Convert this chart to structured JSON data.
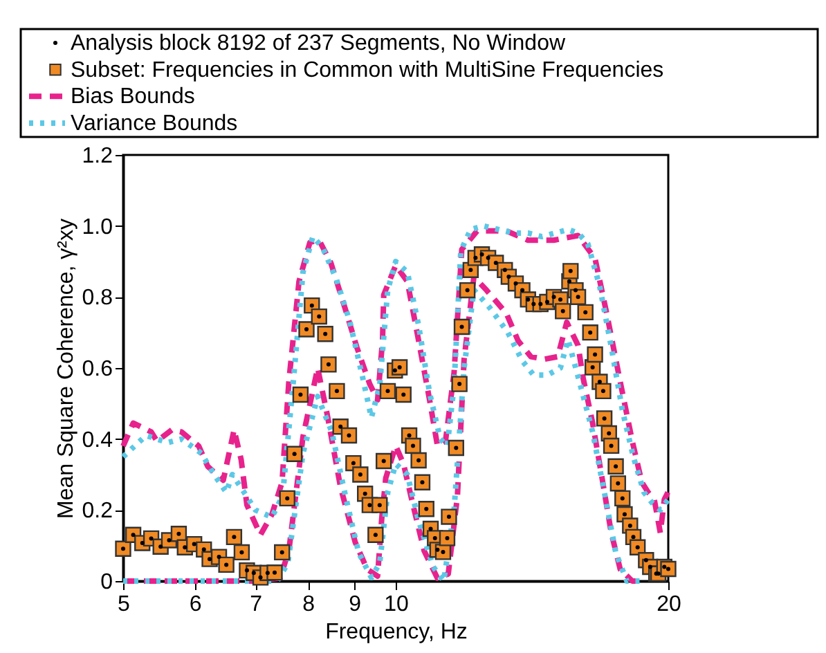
{
  "chart_data": {
    "type": "scatter",
    "xlabel": "Frequency, Hz",
    "ylabel": "Mean Square Coherence, γ²xy",
    "log": "x",
    "xlim": [
      5,
      20
    ],
    "xticks": [
      5,
      6,
      7,
      8,
      9,
      10,
      20
    ],
    "ylim": [
      0,
      1.2
    ],
    "yticks": [
      0,
      0.2,
      0.4,
      0.6,
      0.8,
      {
        "value": 1,
        "label": "1.0"
      },
      1.2
    ],
    "grid": false,
    "legend": "top",
    "series": [
      {
        "name": "Analysis block 8192 of 237 Segments, No Window",
        "marker": "circle",
        "color": "#000000",
        "x": [
          5.0,
          5.13,
          5.25,
          5.37,
          5.5,
          5.62,
          5.76,
          5.85,
          5.99,
          6.14,
          6.23,
          6.38,
          6.5,
          6.63,
          6.76,
          6.85,
          6.97,
          7.09,
          7.22,
          7.35,
          7.49,
          7.59,
          7.73,
          7.85,
          7.97,
          8.08,
          8.23,
          8.36,
          8.43,
          8.61,
          8.69,
          8.88,
          8.98,
          9.14,
          9.25,
          9.36,
          9.5,
          9.6,
          9.7,
          9.8,
          9.98,
          10.1,
          10.2,
          10.35,
          10.45,
          10.6,
          10.7,
          10.81,
          10.93,
          11.05,
          11.12,
          11.28,
          11.4,
          11.45,
          11.66,
          11.76,
          11.83,
          12.0,
          12.1,
          12.25,
          12.45,
          12.65,
          12.9,
          13.2,
          13.33,
          13.57,
          13.8,
          14.0,
          14.2,
          14.45,
          14.7,
          14.95,
          15.2,
          15.3,
          15.55,
          15.6,
          15.8,
          15.9,
          16.2,
          16.4,
          16.5,
          16.6,
          16.8,
          16.95,
          17.0,
          17.2,
          17.3,
          17.5,
          17.6,
          17.8,
          17.9,
          18.15,
          18.3,
          18.5,
          18.9,
          19.1,
          19.4,
          19.5,
          19.8,
          20.0
        ],
        "values": [
          0.091,
          0.13,
          0.107,
          0.12,
          0.097,
          0.115,
          0.133,
          0.095,
          0.104,
          0.089,
          0.062,
          0.068,
          0.046,
          0.124,
          0.081,
          0.03,
          0.023,
          0.01,
          0.023,
          0.024,
          0.081,
          0.233,
          0.358,
          0.525,
          0.709,
          0.776,
          0.745,
          0.696,
          0.61,
          0.535,
          0.435,
          0.41,
          0.332,
          0.3,
          0.246,
          0.214,
          0.13,
          0.214,
          0.338,
          0.535,
          0.593,
          0.602,
          0.525,
          0.41,
          0.381,
          0.34,
          0.278,
          0.203,
          0.147,
          0.121,
          0.088,
          0.082,
          0.121,
          0.181,
          0.375,
          0.555,
          0.716,
          0.819,
          0.876,
          0.91,
          0.92,
          0.91,
          0.896,
          0.876,
          0.857,
          0.838,
          0.819,
          0.793,
          0.78,
          0.78,
          0.786,
          0.8,
          0.793,
          0.76,
          0.844,
          0.873,
          0.819,
          0.8,
          0.757,
          0.7,
          0.602,
          0.638,
          0.561,
          0.535,
          0.458,
          0.416,
          0.381,
          0.323,
          0.275,
          0.233,
          0.188,
          0.156,
          0.124,
          0.095,
          0.059,
          0.04,
          0.021,
          0.021,
          0.04,
          0.034
        ]
      },
      {
        "name": "Subset: Frequencies in Common with MultiSine Frequencies",
        "marker": "square",
        "color": "#f08a24",
        "x": [
          5.0,
          5.13,
          5.25,
          5.37,
          5.5,
          5.62,
          5.76,
          5.85,
          5.99,
          6.14,
          6.23,
          6.38,
          6.5,
          6.63,
          6.76,
          6.85,
          6.97,
          7.09,
          7.22,
          7.35,
          7.49,
          7.59,
          7.73,
          7.85,
          7.97,
          8.08,
          8.23,
          8.36,
          8.43,
          8.61,
          8.69,
          8.88,
          8.98,
          9.14,
          9.25,
          9.36,
          9.5,
          9.6,
          9.7,
          9.8,
          9.98,
          10.1,
          10.2,
          10.35,
          10.45,
          10.6,
          10.7,
          10.81,
          10.93,
          11.05,
          11.12,
          11.28,
          11.4,
          11.45,
          11.66,
          11.76,
          11.83,
          12.0,
          12.1,
          12.25,
          12.45,
          12.65,
          12.9,
          13.2,
          13.33,
          13.57,
          13.8,
          14.0,
          14.2,
          14.45,
          14.7,
          14.95,
          15.2,
          15.3,
          15.55,
          15.6,
          15.8,
          15.9,
          16.2,
          16.4,
          16.5,
          16.6,
          16.8,
          16.95,
          17.0,
          17.2,
          17.3,
          17.5,
          17.6,
          17.8,
          17.9,
          18.15,
          18.3,
          18.5,
          18.9,
          19.1,
          19.4,
          19.5,
          19.8,
          20.0
        ],
        "values": [
          0.091,
          0.13,
          0.107,
          0.12,
          0.097,
          0.115,
          0.133,
          0.095,
          0.104,
          0.089,
          0.062,
          0.068,
          0.046,
          0.124,
          0.081,
          0.03,
          0.023,
          0.01,
          0.023,
          0.024,
          0.081,
          0.233,
          0.358,
          0.525,
          0.709,
          0.776,
          0.745,
          0.696,
          0.61,
          0.535,
          0.435,
          0.41,
          0.332,
          0.3,
          0.246,
          0.214,
          0.13,
          0.214,
          0.338,
          0.535,
          0.593,
          0.602,
          0.525,
          0.41,
          0.381,
          0.34,
          0.278,
          0.203,
          0.147,
          0.121,
          0.088,
          0.082,
          0.121,
          0.181,
          0.375,
          0.555,
          0.716,
          0.819,
          0.876,
          0.91,
          0.92,
          0.91,
          0.896,
          0.876,
          0.857,
          0.838,
          0.819,
          0.793,
          0.78,
          0.78,
          0.786,
          0.8,
          0.793,
          0.76,
          0.844,
          0.873,
          0.819,
          0.8,
          0.757,
          0.7,
          0.602,
          0.638,
          0.561,
          0.535,
          0.458,
          0.416,
          0.381,
          0.323,
          0.275,
          0.233,
          0.188,
          0.156,
          0.124,
          0.095,
          0.059,
          0.04,
          0.021,
          0.021,
          0.04,
          0.034
        ]
      },
      {
        "name": "Bias Bounds",
        "type": "line",
        "line_style": "dashed",
        "color": "#e8228c",
        "x": [
          5.0,
          5.13,
          5.37,
          5.45,
          5.66,
          5.8,
          6.06,
          6.2,
          6.45,
          6.63,
          6.75,
          6.85,
          7.09,
          7.3,
          7.49,
          7.62,
          7.82,
          8.04,
          8.23,
          8.48,
          8.78,
          9.06,
          9.36,
          9.55,
          9.67,
          9.7,
          10.0,
          10.3,
          10.6,
          10.9,
          11.12,
          11.35,
          11.6,
          11.83,
          12.3,
          13.25,
          14.0,
          14.95,
          15.9,
          16.6,
          17.1,
          17.7,
          18.25,
          18.7,
          19.0,
          19.3,
          19.6,
          19.8,
          20.0
        ],
        "values": [
          0.38,
          0.445,
          0.42,
          0.394,
          0.426,
          0.42,
          0.38,
          0.323,
          0.284,
          0.426,
          0.342,
          0.214,
          0.13,
          0.188,
          0.278,
          0.561,
          0.844,
          0.954,
          0.96,
          0.896,
          0.773,
          0.658,
          0.555,
          0.51,
          0.677,
          0.806,
          0.889,
          0.844,
          0.677,
          0.51,
          0.381,
          0.394,
          0.587,
          0.934,
          0.986,
          0.986,
          0.96,
          0.96,
          0.973,
          0.909,
          0.754,
          0.561,
          0.394,
          0.278,
          0.25,
          0.23,
          0.136,
          0.23,
          0.252
        ]
      },
      {
        "type": "line",
        "line_style": "dashed",
        "color": "#e8228c",
        "x": [
          5.0,
          6.0,
          7.0,
          7.45,
          7.62,
          7.9,
          8.2,
          8.4,
          8.69,
          9.02,
          9.3,
          9.55,
          9.65,
          9.75,
          10.0,
          10.2,
          10.45,
          10.75,
          11.12,
          11.43,
          11.7,
          11.9,
          12.2,
          12.6,
          13.25,
          13.65,
          14.1,
          14.6,
          15.1,
          15.45,
          15.9,
          16.1,
          16.5,
          16.9,
          17.3,
          17.7,
          18.25,
          18.6
        ],
        "values": [
          0.0,
          0.0,
          0.0,
          0.008,
          0.085,
          0.407,
          0.6,
          0.47,
          0.265,
          0.11,
          0.033,
          0.014,
          0.175,
          0.29,
          0.381,
          0.33,
          0.214,
          0.085,
          0.008,
          0.02,
          0.24,
          0.625,
          0.857,
          0.819,
          0.754,
          0.677,
          0.632,
          0.625,
          0.632,
          0.729,
          0.664,
          0.574,
          0.445,
          0.29,
          0.136,
          0.033,
          0.0,
          0.0
        ]
      },
      {
        "name": "Variance Bounds",
        "type": "line",
        "line_style": "dotted",
        "color": "#5bc8e6",
        "x": [
          5.0,
          5.3,
          5.6,
          5.8,
          6.1,
          6.3,
          6.5,
          6.6,
          6.8,
          7.0,
          7.3,
          7.5,
          7.7,
          7.9,
          8.1,
          8.3,
          8.6,
          8.9,
          9.2,
          9.4,
          9.6,
          9.8,
          10.0,
          10.3,
          10.6,
          10.9,
          11.2,
          11.4,
          11.6,
          11.8,
          12.1,
          12.5,
          13.0,
          13.5,
          14.0,
          14.5,
          15.0,
          15.5,
          15.9,
          16.3,
          16.8,
          17.3,
          17.8,
          18.3,
          18.8,
          19.2,
          19.6,
          20.0
        ],
        "values": [
          0.35,
          0.41,
          0.39,
          0.4,
          0.36,
          0.3,
          0.25,
          0.3,
          0.25,
          0.2,
          0.18,
          0.24,
          0.55,
          0.87,
          0.97,
          0.94,
          0.85,
          0.73,
          0.57,
          0.46,
          0.55,
          0.82,
          0.9,
          0.87,
          0.72,
          0.53,
          0.4,
          0.38,
          0.55,
          0.93,
          0.99,
          1.0,
          0.99,
          0.98,
          0.98,
          0.97,
          0.98,
          0.99,
          0.98,
          0.95,
          0.83,
          0.66,
          0.48,
          0.35,
          0.25,
          0.22,
          0.2,
          0.23
        ]
      },
      {
        "type": "line",
        "line_style": "dotted",
        "color": "#5bc8e6",
        "x": [
          5.0,
          6.0,
          7.0,
          7.4,
          7.6,
          7.9,
          8.2,
          8.5,
          8.8,
          9.1,
          9.4,
          9.6,
          9.8,
          10.0,
          10.3,
          10.6,
          11.0,
          11.3,
          11.6,
          11.9,
          12.2,
          12.7,
          13.3,
          13.8,
          14.2,
          14.7,
          15.2,
          15.5,
          16.0,
          16.5,
          17.0,
          17.5,
          18.0,
          18.8
        ],
        "values": [
          0.0,
          0.0,
          0.0,
          0.0,
          0.05,
          0.36,
          0.52,
          0.42,
          0.24,
          0.08,
          0.01,
          0.05,
          0.25,
          0.33,
          0.3,
          0.17,
          0.04,
          0.0,
          0.2,
          0.6,
          0.82,
          0.77,
          0.7,
          0.62,
          0.58,
          0.58,
          0.6,
          0.68,
          0.55,
          0.42,
          0.25,
          0.08,
          0.0,
          0.0
        ]
      }
    ]
  }
}
